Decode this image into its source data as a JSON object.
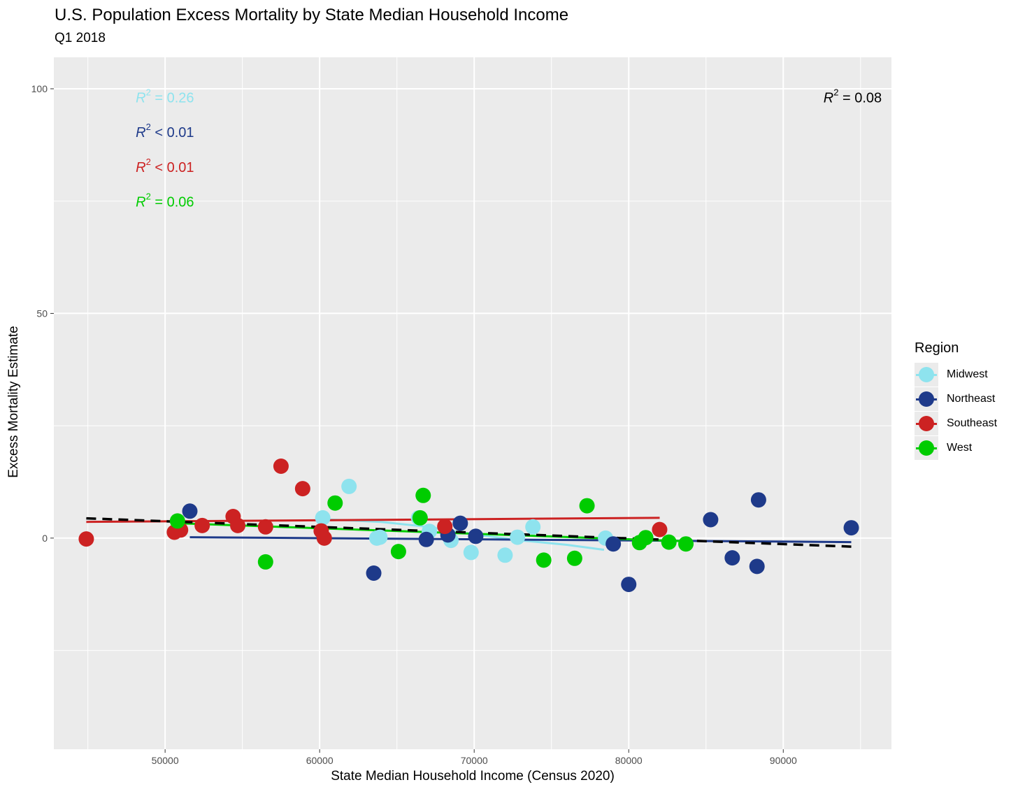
{
  "chart_data": {
    "type": "scatter",
    "title": "U.S. Population Excess Mortality by State Median Household Income",
    "subtitle": "Q1 2018",
    "xlabel": "State Median Household Income (Census 2020)",
    "ylabel": "Excess Mortality Estimate",
    "xlim": [
      42800,
      97000
    ],
    "ylim": [
      -47,
      107
    ],
    "x_ticks": [
      50000,
      60000,
      70000,
      80000,
      90000
    ],
    "y_ticks": [
      0,
      50,
      100
    ],
    "grid": true,
    "legend": {
      "title": "Region",
      "position": "right",
      "entries": [
        {
          "name": "Midwest",
          "color": "#8ee3ee"
        },
        {
          "name": "Northeast",
          "color": "#1e3a8a"
        },
        {
          "name": "Southeast",
          "color": "#cc2222"
        },
        {
          "name": "West",
          "color": "#00cc00"
        }
      ]
    },
    "annotations": [
      {
        "id": "midwest",
        "label": "R",
        "sup": "2",
        "text": " = 0.26",
        "color": "#8ee3ee",
        "x": 48100,
        "y": 97
      },
      {
        "id": "northeast",
        "label": "R",
        "sup": "2",
        "text": " < 0.01",
        "color": "#1e3a8a",
        "x": 48100,
        "y": 89.3
      },
      {
        "id": "southeast",
        "label": "R",
        "sup": "2",
        "text": " < 0.01",
        "color": "#cc2222",
        "x": 48100,
        "y": 81.5
      },
      {
        "id": "west",
        "label": "R",
        "sup": "2",
        "text": " = 0.06",
        "color": "#00cc00",
        "x": 48100,
        "y": 73.8
      },
      {
        "id": "overall",
        "label": "R",
        "sup": "2",
        "text": " = 0.08",
        "color": "#000000",
        "x": 92600,
        "y": 97
      }
    ],
    "series": [
      {
        "name": "Midwest",
        "color": "#8ee3ee",
        "points": [
          [
            60200,
            4.5
          ],
          [
            61900,
            11.5
          ],
          [
            63700,
            0
          ],
          [
            63900,
            0.2
          ],
          [
            66400,
            4.5
          ],
          [
            67100,
            1.5
          ],
          [
            68500,
            -0.5
          ],
          [
            69800,
            -3.2
          ],
          [
            72000,
            -3.8
          ],
          [
            72800,
            0.2
          ],
          [
            73800,
            2.5
          ],
          [
            78500,
            0
          ]
        ],
        "fit": [
          [
            60200,
            4.2
          ],
          [
            64000,
            3.6
          ],
          [
            67000,
            2.5
          ],
          [
            70000,
            0.8
          ],
          [
            73000,
            -0.5
          ],
          [
            76000,
            -1.5
          ],
          [
            78400,
            -2.6
          ]
        ]
      },
      {
        "name": "Northeast",
        "color": "#1e3a8a",
        "points": [
          [
            51600,
            6
          ],
          [
            63500,
            -7.8
          ],
          [
            66900,
            -0.3
          ],
          [
            68300,
            0.7
          ],
          [
            69100,
            3.3
          ],
          [
            70100,
            0.4
          ],
          [
            79000,
            -1.3
          ],
          [
            80000,
            -10.3
          ],
          [
            85300,
            4.1
          ],
          [
            86700,
            -4.4
          ],
          [
            88300,
            -6.3
          ],
          [
            88400,
            8.5
          ],
          [
            94400,
            2.3
          ]
        ],
        "fit": [
          [
            51600,
            0.2
          ],
          [
            94400,
            -0.9
          ]
        ]
      },
      {
        "name": "Southeast",
        "color": "#cc2222",
        "points": [
          [
            44900,
            -0.2
          ],
          [
            50600,
            1.3
          ],
          [
            51000,
            1.8
          ],
          [
            52400,
            2.8
          ],
          [
            54400,
            4.8
          ],
          [
            54700,
            2.8
          ],
          [
            56500,
            2.5
          ],
          [
            57500,
            16
          ],
          [
            58900,
            11
          ],
          [
            60100,
            1.6
          ],
          [
            60300,
            0
          ],
          [
            68100,
            2.6
          ],
          [
            82000,
            1.9
          ]
        ],
        "fit": [
          [
            44900,
            3.6
          ],
          [
            82000,
            4.5
          ]
        ]
      },
      {
        "name": "West",
        "color": "#00cc00",
        "points": [
          [
            50800,
            3.8
          ],
          [
            56500,
            -5.3
          ],
          [
            61000,
            7.8
          ],
          [
            65100,
            -3
          ],
          [
            66500,
            4.5
          ],
          [
            66700,
            9.5
          ],
          [
            74500,
            -4.9
          ],
          [
            76500,
            -4.5
          ],
          [
            77300,
            7.2
          ],
          [
            80700,
            -1
          ],
          [
            81100,
            0.1
          ],
          [
            82600,
            -0.9
          ],
          [
            83700,
            -1.3
          ]
        ],
        "fit": [
          [
            50800,
            3.3
          ],
          [
            83700,
            -0.7
          ]
        ]
      }
    ],
    "overall_fit": [
      [
        44900,
        4.4
      ],
      [
        94400,
        -1.9
      ]
    ]
  }
}
